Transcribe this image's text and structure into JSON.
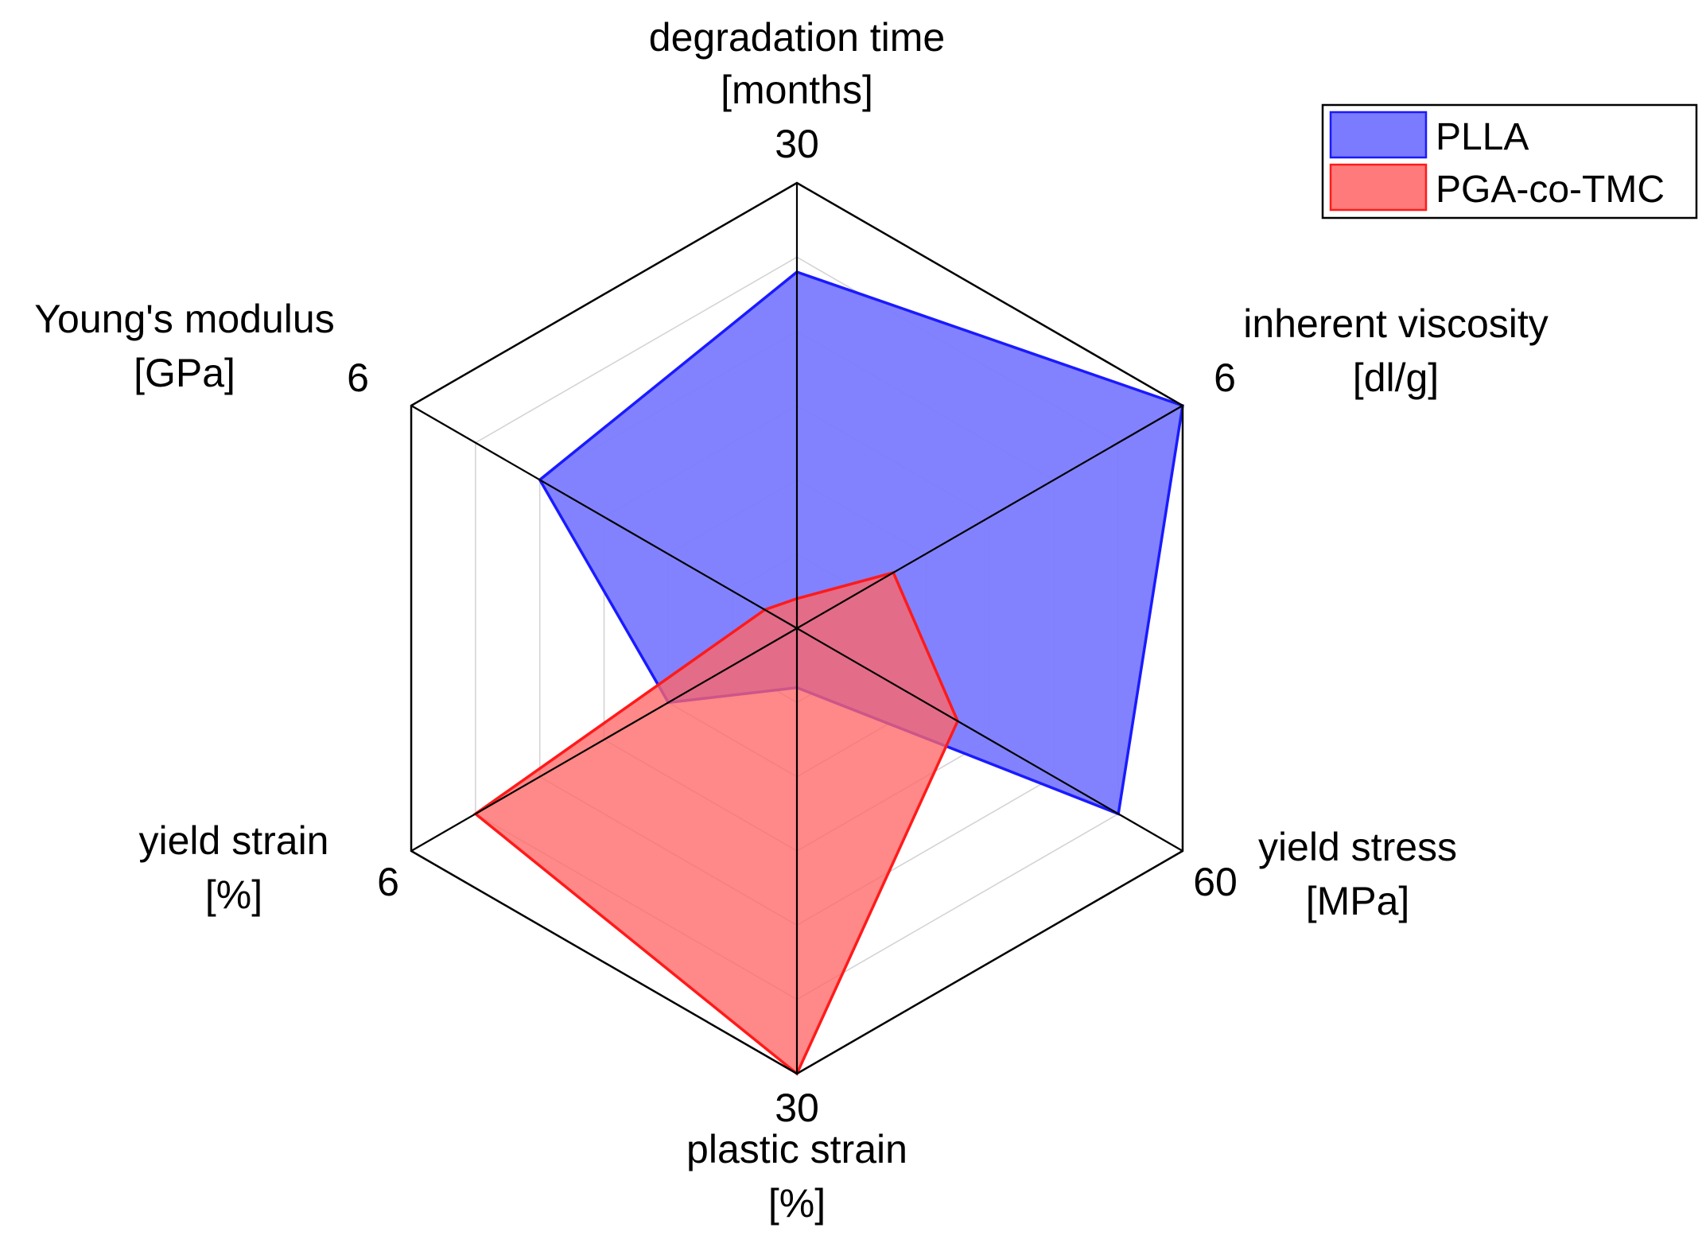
{
  "chart_data": {
    "type": "radar",
    "axes": [
      {
        "name": "degradation time",
        "unit": "[months]",
        "max": 30,
        "max_label": "30"
      },
      {
        "name": "inherent viscosity",
        "unit": "[dl/g]",
        "max": 6,
        "max_label": "6"
      },
      {
        "name": "yield stress",
        "unit": "[MPa]",
        "max": 60,
        "max_label": "60"
      },
      {
        "name": "plastic strain",
        "unit": "[%]",
        "max": 30,
        "max_label": "30"
      },
      {
        "name": "yield strain",
        "unit": "[%]",
        "max": 6,
        "max_label": "6"
      },
      {
        "name": "Young's modulus",
        "unit": "[GPa]",
        "max": 6,
        "max_label": "6"
      }
    ],
    "series": [
      {
        "name": "PLLA",
        "values": [
          24,
          6,
          50,
          4,
          2,
          4
        ],
        "fill": "#7b7bff",
        "stroke": "#1a1aff"
      },
      {
        "name": "PGA-co-TMC",
        "values": [
          2,
          1.5,
          25,
          30,
          5,
          0.5
        ],
        "fill": "#ff6666",
        "stroke": "#ff1a1a"
      }
    ],
    "grid_rings": 6,
    "legend_position": "top-right",
    "grid": true
  }
}
